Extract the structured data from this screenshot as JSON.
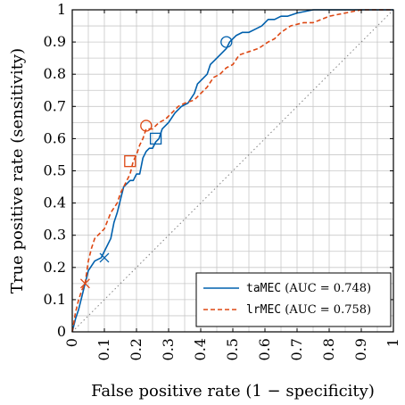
{
  "chart_data": {
    "type": "line",
    "xlabel": "False positive rate (1 − specificity)",
    "ylabel": "True positive rate (sensitivity)",
    "xlim": [
      0,
      1
    ],
    "ylim": [
      0,
      1
    ],
    "x_ticks": [
      0,
      0.1,
      0.2,
      0.3,
      0.4,
      0.5,
      0.6,
      0.7,
      0.8,
      0.9,
      1
    ],
    "x_tick_labels": [
      "0",
      "0.1",
      "0.2",
      "0.3",
      "0.4",
      "0.5",
      "0.6",
      "0.7",
      "0.8",
      "0.9",
      "1"
    ],
    "y_ticks": [
      0,
      0.1,
      0.2,
      0.3,
      0.4,
      0.5,
      0.6,
      0.7,
      0.8,
      0.9,
      1
    ],
    "y_tick_labels": [
      "0",
      "0.1",
      "0.2",
      "0.3",
      "0.4",
      "0.5",
      "0.6",
      "0.7",
      "0.8",
      "0.9",
      "1"
    ],
    "grid": true,
    "grid_step": 0.05,
    "legend_position": "bottom-right",
    "diagonal": {
      "x": [
        0,
        1
      ],
      "y": [
        0,
        1
      ],
      "color": "#808080",
      "style": "dotted"
    },
    "series": [
      {
        "name": "taMEC",
        "auc_label": "(AUC = 0.748)",
        "color": "#0060ad",
        "style": "solid",
        "x": [
          0,
          0.01,
          0.02,
          0.03,
          0.04,
          0.05,
          0.07,
          0.09,
          0.1,
          0.12,
          0.13,
          0.14,
          0.15,
          0.16,
          0.18,
          0.19,
          0.2,
          0.21,
          0.22,
          0.23,
          0.24,
          0.25,
          0.26,
          0.27,
          0.28,
          0.3,
          0.32,
          0.34,
          0.36,
          0.38,
          0.39,
          0.4,
          0.42,
          0.43,
          0.45,
          0.46,
          0.47,
          0.48,
          0.49,
          0.51,
          0.53,
          0.55,
          0.57,
          0.59,
          0.6,
          0.61,
          0.63,
          0.65,
          0.67,
          0.7,
          0.75,
          0.8,
          0.85,
          0.9,
          1.0
        ],
        "y": [
          0,
          0.04,
          0.07,
          0.11,
          0.15,
          0.19,
          0.22,
          0.23,
          0.25,
          0.29,
          0.34,
          0.37,
          0.41,
          0.45,
          0.47,
          0.47,
          0.49,
          0.49,
          0.54,
          0.56,
          0.57,
          0.57,
          0.59,
          0.6,
          0.63,
          0.65,
          0.68,
          0.7,
          0.71,
          0.74,
          0.77,
          0.78,
          0.8,
          0.83,
          0.85,
          0.86,
          0.87,
          0.88,
          0.9,
          0.92,
          0.93,
          0.93,
          0.94,
          0.95,
          0.96,
          0.97,
          0.97,
          0.98,
          0.98,
          0.99,
          1.0,
          1.0,
          1.0,
          1.0,
          1.0
        ],
        "markers": [
          {
            "x": 0.1,
            "y": 0.23,
            "shape": "cross"
          },
          {
            "x": 0.26,
            "y": 0.6,
            "shape": "square"
          },
          {
            "x": 0.48,
            "y": 0.9,
            "shape": "circle"
          }
        ]
      },
      {
        "name": "lrMEC",
        "auc_label": "(AUC = 0.758)",
        "color": "#dd4814",
        "style": "dashed",
        "x": [
          0,
          0.01,
          0.02,
          0.03,
          0.04,
          0.05,
          0.06,
          0.07,
          0.08,
          0.09,
          0.1,
          0.12,
          0.14,
          0.15,
          0.16,
          0.17,
          0.18,
          0.19,
          0.2,
          0.21,
          0.22,
          0.23,
          0.25,
          0.27,
          0.29,
          0.31,
          0.33,
          0.35,
          0.38,
          0.4,
          0.42,
          0.44,
          0.46,
          0.48,
          0.5,
          0.52,
          0.55,
          0.58,
          0.61,
          0.63,
          0.65,
          0.68,
          0.72,
          0.75,
          0.8,
          0.85,
          0.9,
          1.0
        ],
        "y": [
          0,
          0.06,
          0.1,
          0.13,
          0.15,
          0.22,
          0.26,
          0.29,
          0.3,
          0.31,
          0.32,
          0.37,
          0.4,
          0.43,
          0.45,
          0.47,
          0.49,
          0.53,
          0.55,
          0.58,
          0.6,
          0.63,
          0.63,
          0.65,
          0.66,
          0.68,
          0.7,
          0.71,
          0.72,
          0.74,
          0.76,
          0.79,
          0.8,
          0.82,
          0.83,
          0.86,
          0.87,
          0.88,
          0.9,
          0.91,
          0.93,
          0.95,
          0.96,
          0.96,
          0.98,
          0.99,
          1.0,
          1.0
        ],
        "markers": [
          {
            "x": 0.04,
            "y": 0.15,
            "shape": "cross"
          },
          {
            "x": 0.18,
            "y": 0.53,
            "shape": "square"
          },
          {
            "x": 0.23,
            "y": 0.64,
            "shape": "circle"
          }
        ]
      }
    ]
  }
}
